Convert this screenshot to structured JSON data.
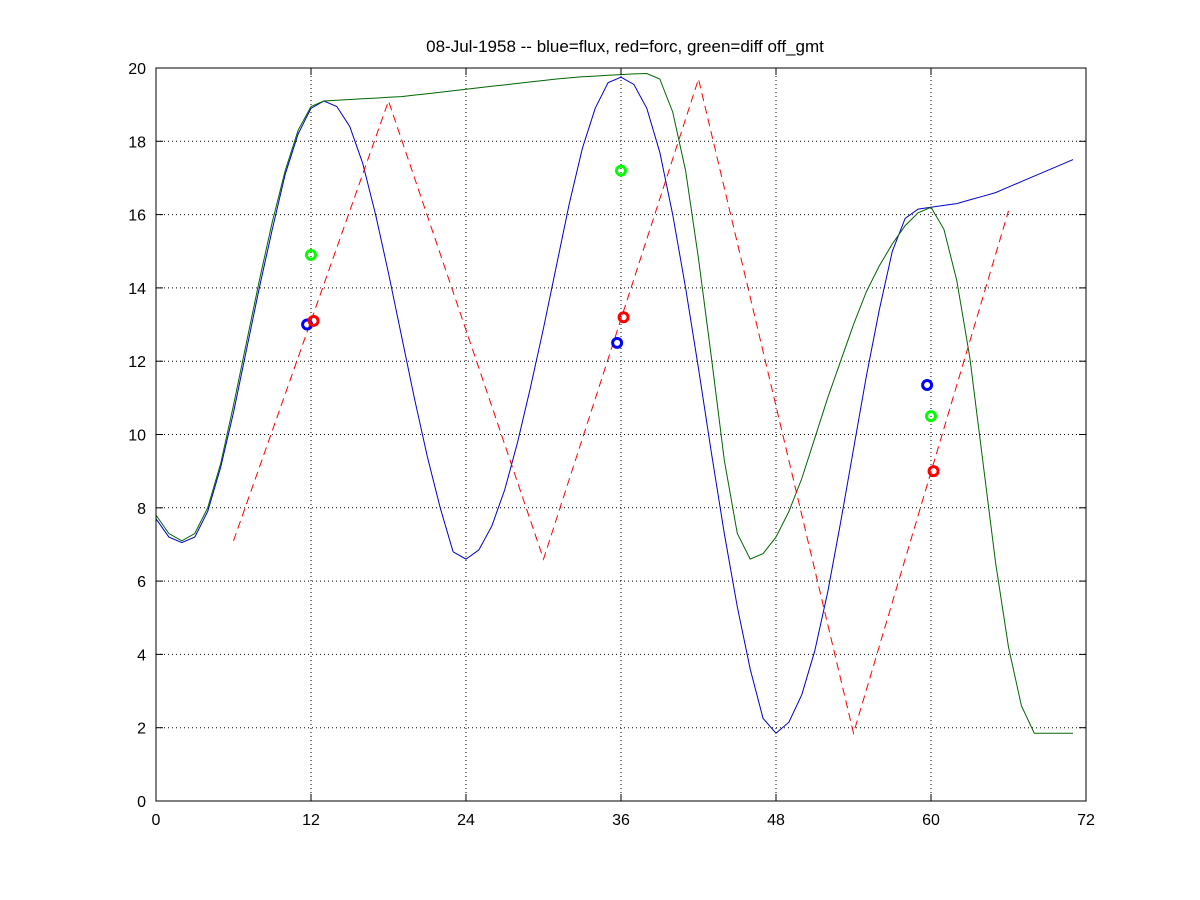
{
  "chart_data": {
    "type": "line",
    "title": "08-Jul-1958 -- blue=flux, red=forc, green=diff off_gmt",
    "xlabel": "",
    "ylabel": "",
    "xlim": [
      0,
      72
    ],
    "ylim": [
      0,
      20
    ],
    "xticks": [
      0,
      12,
      24,
      36,
      48,
      60,
      72
    ],
    "yticks": [
      0,
      2,
      4,
      6,
      8,
      10,
      12,
      14,
      16,
      18,
      20
    ],
    "grid": true,
    "series": [
      {
        "color": "#0000cc",
        "style": "solid",
        "x": [
          0,
          1,
          2,
          3,
          4,
          5,
          6,
          7,
          8,
          9,
          10,
          11,
          12,
          13,
          14,
          15,
          16,
          17,
          18,
          19,
          20,
          21,
          22,
          23,
          24,
          25,
          26,
          27,
          28,
          29,
          30,
          31,
          32,
          33,
          34,
          35,
          36,
          37,
          38,
          39,
          40,
          41,
          42,
          43,
          44,
          45,
          46,
          47,
          48,
          49,
          50,
          51,
          52,
          53,
          54,
          55,
          56,
          57,
          58,
          59,
          60,
          61,
          62,
          63,
          64,
          65,
          66,
          67,
          68,
          69,
          70,
          71
        ],
        "y": [
          7.7,
          7.2,
          7.05,
          7.2,
          7.9,
          9.1,
          10.6,
          12.3,
          14.0,
          15.6,
          17.1,
          18.2,
          18.9,
          19.1,
          18.95,
          18.4,
          17.4,
          16.0,
          14.4,
          12.7,
          11.0,
          9.4,
          8.0,
          6.8,
          6.6,
          6.85,
          7.5,
          8.5,
          9.8,
          11.3,
          12.9,
          14.6,
          16.3,
          17.8,
          18.9,
          19.6,
          19.75,
          19.55,
          18.9,
          17.7,
          16.0,
          14.0,
          11.8,
          9.5,
          7.3,
          5.3,
          3.6,
          2.25,
          1.85,
          2.15,
          2.9,
          4.1,
          5.7,
          7.6,
          9.6,
          11.6,
          13.4,
          15.0,
          15.9,
          16.15,
          16.2,
          16.25,
          16.3,
          16.4,
          16.5,
          16.6,
          16.75,
          16.9,
          17.05,
          17.2,
          17.35,
          17.5
        ],
        "x_offset": 0,
        "markers": []
      },
      {
        "color": "#006600",
        "style": "solid",
        "x": [
          0,
          1,
          2,
          3,
          4,
          5,
          6,
          7,
          8,
          9,
          10,
          11,
          12,
          13,
          14,
          15,
          16,
          17,
          18,
          19,
          20,
          21,
          22,
          23,
          24,
          25,
          26,
          27,
          28,
          29,
          30,
          31,
          32,
          33,
          34,
          35,
          36,
          37,
          38,
          39,
          40,
          41,
          42,
          43,
          44,
          45,
          46,
          47,
          48,
          49,
          50,
          51,
          52,
          53,
          54,
          55,
          56,
          57,
          58,
          59,
          60,
          61,
          62,
          63,
          64,
          65,
          66,
          67,
          68,
          69,
          70,
          71
        ],
        "y": [
          7.8,
          7.3,
          7.1,
          7.3,
          8.0,
          9.2,
          10.8,
          12.5,
          14.2,
          15.8,
          17.2,
          18.3,
          18.95,
          19.1,
          19.12,
          19.14,
          19.16,
          19.18,
          19.2,
          19.22,
          19.26,
          19.3,
          19.34,
          19.38,
          19.42,
          19.46,
          19.5,
          19.54,
          19.58,
          19.62,
          19.66,
          19.7,
          19.73,
          19.76,
          19.78,
          19.8,
          19.82,
          19.84,
          19.85,
          19.7,
          18.8,
          17.2,
          14.8,
          12.1,
          9.3,
          7.3,
          6.6,
          6.75,
          7.2,
          7.9,
          8.8,
          9.9,
          11.0,
          12.0,
          13.0,
          13.9,
          14.6,
          15.2,
          15.7,
          16.05,
          16.2,
          15.6,
          14.2,
          12.1,
          9.3,
          6.5,
          4.2,
          2.6,
          1.85,
          1.85,
          1.85,
          1.85
        ],
        "x_offset": 0,
        "markers": []
      },
      {
        "color": "#ff0000",
        "style": "dashed",
        "x": [
          6,
          18,
          30,
          42,
          54,
          66
        ],
        "y": [
          7.1,
          19.1,
          6.6,
          19.7,
          1.85,
          16.1
        ],
        "markers": []
      }
    ],
    "point_markers": [
      {
        "color": "#0000ff",
        "x": 11.7,
        "y": 13.0
      },
      {
        "color": "#ff0000",
        "x": 12.2,
        "y": 13.1
      },
      {
        "color": "#00ff00",
        "x": 12.0,
        "y": 14.9
      },
      {
        "color": "#0000ff",
        "x": 35.7,
        "y": 12.5
      },
      {
        "color": "#ff0000",
        "x": 36.2,
        "y": 13.2
      },
      {
        "color": "#00ff00",
        "x": 36.0,
        "y": 17.2
      },
      {
        "color": "#0000ff",
        "x": 59.7,
        "y": 11.35
      },
      {
        "color": "#ff0000",
        "x": 60.2,
        "y": 9.0
      },
      {
        "color": "#00ff00",
        "x": 60.0,
        "y": 10.5
      }
    ]
  }
}
